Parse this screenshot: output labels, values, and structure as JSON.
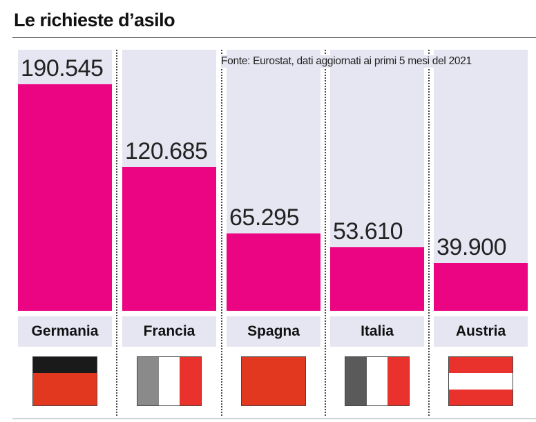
{
  "title": "Le richieste d’asilo",
  "source": "Fonte: Eurostat, dati aggiornati ai primi 5 mesi del 2021",
  "chart_data": {
    "type": "bar",
    "title": "Le richieste d’asilo",
    "categories": [
      "Germania",
      "Francia",
      "Spagna",
      "Italia",
      "Austria"
    ],
    "values": [
      190545,
      120685,
      65295,
      53610,
      39900
    ],
    "value_labels": [
      "190.545",
      "120.685",
      "65.295",
      "53.610",
      "39.900"
    ],
    "ylim": [
      0,
      190545
    ],
    "grid": false,
    "bar_color": "#ec0583"
  },
  "flags": [
    {
      "country": "Germania",
      "orientation": "horizontal",
      "colors": [
        "#1a1a1a",
        "#e2381f",
        "#e2381f"
      ]
    },
    {
      "country": "Francia",
      "orientation": "vertical",
      "colors": [
        "#8a8a8a",
        "#ffffff",
        "#e8322b"
      ]
    },
    {
      "country": "Spagna",
      "orientation": "horizontal",
      "colors": [
        "#e2381f",
        "#e2381f",
        "#e2381f"
      ]
    },
    {
      "country": "Italia",
      "orientation": "vertical",
      "colors": [
        "#5a5a5a",
        "#ffffff",
        "#e8322b"
      ]
    },
    {
      "country": "Austria",
      "orientation": "horizontal",
      "colors": [
        "#e8322b",
        "#ffffff",
        "#e8322b"
      ]
    }
  ]
}
